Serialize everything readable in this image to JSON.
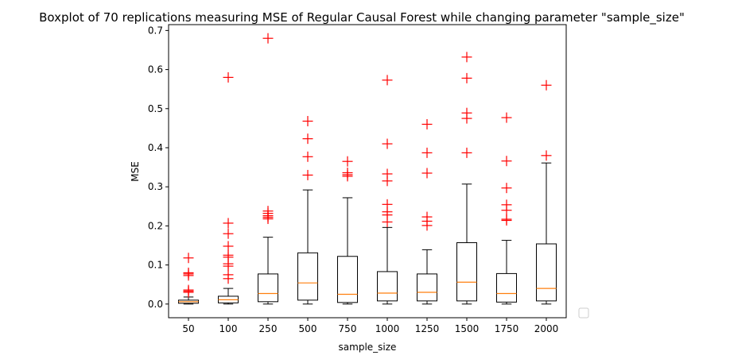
{
  "chart_data": {
    "type": "boxplot",
    "title": "Boxplot of 70 replications measuring MSE of Regular Causal Forest while changing parameter \"sample_size\"",
    "xlabel": "sample_size",
    "ylabel": "MSE",
    "ylim": [
      -0.035,
      0.715
    ],
    "yticks": [
      "0.0",
      "0.1",
      "0.2",
      "0.3",
      "0.4",
      "0.5",
      "0.6",
      "0.7"
    ],
    "grid": false,
    "legend": "empty-box-lower-right",
    "colors": {
      "box": "#000000",
      "median": "#ff7f0e",
      "outlier": "#ff0000"
    },
    "categories": [
      "50",
      "100",
      "250",
      "500",
      "750",
      "1000",
      "1250",
      "1500",
      "1750",
      "2000"
    ],
    "boxes": [
      {
        "whisker_low": 0.0,
        "q1": 0.002,
        "median": 0.006,
        "q3": 0.01,
        "whisker_high": 0.018,
        "outliers": [
          0.118,
          0.08,
          0.077,
          0.073,
          0.036,
          0.033,
          0.03
        ]
      },
      {
        "whisker_low": 0.0,
        "q1": 0.003,
        "median": 0.011,
        "q3": 0.02,
        "whisker_high": 0.04,
        "outliers": [
          0.58,
          0.207,
          0.18,
          0.148,
          0.125,
          0.12,
          0.103,
          0.097,
          0.075,
          0.065
        ]
      },
      {
        "whisker_low": 0.0,
        "q1": 0.006,
        "median": 0.027,
        "q3": 0.077,
        "whisker_high": 0.171,
        "outliers": [
          0.68,
          0.238,
          0.232,
          0.226,
          0.222,
          0.218
        ]
      },
      {
        "whisker_low": 0.0,
        "q1": 0.01,
        "median": 0.054,
        "q3": 0.131,
        "whisker_high": 0.292,
        "outliers": [
          0.468,
          0.423,
          0.377,
          0.33
        ]
      },
      {
        "whisker_low": 0.0,
        "q1": 0.004,
        "median": 0.025,
        "q3": 0.122,
        "whisker_high": 0.272,
        "outliers": [
          0.365,
          0.336,
          0.331,
          0.327
        ]
      },
      {
        "whisker_low": 0.0,
        "q1": 0.008,
        "median": 0.028,
        "q3": 0.083,
        "whisker_high": 0.196,
        "outliers": [
          0.573,
          0.41,
          0.333,
          0.315,
          0.255,
          0.236,
          0.228,
          0.21
        ]
      },
      {
        "whisker_low": 0.0,
        "q1": 0.008,
        "median": 0.03,
        "q3": 0.077,
        "whisker_high": 0.139,
        "outliers": [
          0.46,
          0.387,
          0.335,
          0.223,
          0.212,
          0.201
        ]
      },
      {
        "whisker_low": 0.0,
        "q1": 0.008,
        "median": 0.056,
        "q3": 0.157,
        "whisker_high": 0.307,
        "outliers": [
          0.632,
          0.578,
          0.489,
          0.475,
          0.387
        ]
      },
      {
        "whisker_low": 0.0,
        "q1": 0.005,
        "median": 0.027,
        "q3": 0.078,
        "whisker_high": 0.163,
        "outliers": [
          0.477,
          0.366,
          0.297,
          0.254,
          0.24,
          0.217,
          0.214
        ]
      },
      {
        "whisker_low": 0.0,
        "q1": 0.008,
        "median": 0.04,
        "q3": 0.154,
        "whisker_high": 0.361,
        "outliers": [
          0.56,
          0.38
        ]
      }
    ]
  }
}
